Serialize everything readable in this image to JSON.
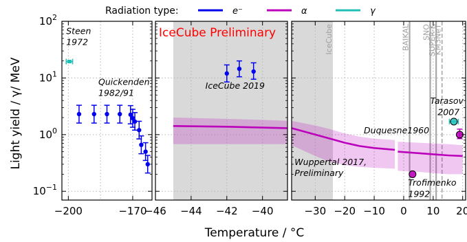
{
  "chart_data": {
    "type": "scatter",
    "ylabel": "Light yield / γ/ MeV",
    "xlabel": "Temperature / °C",
    "yscale": "log",
    "ylim": [
      0.07,
      100
    ],
    "y_ticks": [
      {
        "value": 0.1,
        "base": "10",
        "exp": "−1"
      },
      {
        "value": 1,
        "base": "10",
        "exp": "0"
      },
      {
        "value": 10,
        "base": "10",
        "exp": "1"
      },
      {
        "value": 100,
        "base": "10",
        "exp": "2"
      }
    ],
    "legend": {
      "title": "Radiation type:",
      "placement": "top",
      "entries": [
        {
          "label": "e⁻",
          "color": "#0000ee"
        },
        {
          "label": "α",
          "color": "#bb00bb"
        },
        {
          "label": "γ",
          "color": "#1fbfb8"
        }
      ]
    },
    "watermark": {
      "text": "IceCube Preliminary",
      "color": "#ff0000"
    },
    "panels": [
      {
        "id": "left",
        "xlim": [
          -203,
          -161
        ],
        "x_ticks": [
          {
            "value": -200,
            "label": "−200"
          },
          {
            "value": -170,
            "label": "−170"
          }
        ],
        "grid_x": [
          -200,
          -185,
          -170
        ],
        "annotations": [
          {
            "text": "Steen",
            "x": -201,
            "y": 60
          },
          {
            "text": "1972",
            "x": -201,
            "y": 38
          },
          {
            "text": "Quickenden",
            "x": -186,
            "y": 7.5
          },
          {
            "text": "1982/91",
            "x": -186,
            "y": 4.8
          }
        ],
        "series": [
          {
            "name": "Quickenden 1982/91",
            "radiation": "e⁻",
            "color": "#0000ee",
            "marker": "dot",
            "points": [
              {
                "x": -195,
                "y": 2.3,
                "ylo": 1.6,
                "yhi": 3.3
              },
              {
                "x": -188,
                "y": 2.3,
                "ylo": 1.6,
                "yhi": 3.3
              },
              {
                "x": -182,
                "y": 2.3,
                "ylo": 1.6,
                "yhi": 3.3
              },
              {
                "x": -176,
                "y": 2.3,
                "ylo": 1.6,
                "yhi": 3.3
              },
              {
                "x": -171,
                "y": 2.25,
                "ylo": 1.55,
                "yhi": 3.25
              },
              {
                "x": -170,
                "y": 1.95,
                "ylo": 1.35,
                "yhi": 2.8
              },
              {
                "x": -169,
                "y": 1.7,
                "ylo": 1.2,
                "yhi": 2.45
              },
              {
                "x": -167,
                "y": 1.2,
                "ylo": 0.84,
                "yhi": 1.72
              },
              {
                "x": -166,
                "y": 0.66,
                "ylo": 0.46,
                "yhi": 0.95
              },
              {
                "x": -164,
                "y": 0.5,
                "ylo": 0.35,
                "yhi": 0.72
              },
              {
                "x": -163,
                "y": 0.3,
                "ylo": 0.21,
                "yhi": 0.43
              }
            ]
          },
          {
            "name": "Steen 1972",
            "radiation": "γ",
            "color": "#1fbfb8",
            "marker": "hline",
            "points": [
              {
                "x": -199.5,
                "y": 19.5,
                "xlo": -201,
                "xhi": -198
              }
            ]
          }
        ]
      },
      {
        "id": "middle",
        "xlim": [
          -46,
          -38.6
        ],
        "x_ticks": [
          {
            "value": -46,
            "label": "−46"
          },
          {
            "value": -44,
            "label": "−44"
          },
          {
            "value": -42,
            "label": "−42"
          },
          {
            "value": -40,
            "label": "−40"
          }
        ],
        "grid_x": [
          -46,
          -44,
          -42,
          -40
        ],
        "shaded_x": [
          -45,
          -38.6
        ],
        "annotations": [
          {
            "text": "IceCube 2019",
            "x": -43.2,
            "y": 6.5
          }
        ],
        "series": [
          {
            "name": "IceCube 2019",
            "radiation": "e⁻",
            "color": "#0000ee",
            "marker": "dot",
            "points": [
              {
                "x": -42,
                "y": 12,
                "ylo": 8.5,
                "yhi": 17
              },
              {
                "x": -41.3,
                "y": 14.5,
                "ylo": 10.5,
                "yhi": 20
              },
              {
                "x": -40.5,
                "y": 13,
                "ylo": 9.5,
                "yhi": 18.5
              }
            ]
          },
          {
            "name": "Wuppertal 2017",
            "radiation": "α",
            "color": "#bb00bb",
            "marker": "line",
            "x": [
              -45,
              -42,
              -40,
              -38.6
            ],
            "y": [
              1.42,
              1.38,
              1.33,
              1.3
            ],
            "ylo": [
              0.68,
              0.68,
              0.68,
              0.68
            ],
            "yhi": [
              2.0,
              1.9,
              1.82,
              1.75
            ]
          }
        ]
      },
      {
        "id": "right",
        "xlim": [
          -38,
          21
        ],
        "x_ticks": [
          {
            "value": -30,
            "label": "−30"
          },
          {
            "value": -20,
            "label": "−20"
          },
          {
            "value": -10,
            "label": "−10"
          },
          {
            "value": 0,
            "label": "0"
          },
          {
            "value": 10,
            "label": "10"
          },
          {
            "value": 20,
            "label": "20"
          }
        ],
        "grid_x": [
          -30,
          -20,
          -10,
          0,
          10,
          20
        ],
        "shaded_x": [
          -38,
          -24
        ],
        "annotations": [
          {
            "text": "Wuppertal 2017,",
            "x": -37,
            "y": 0.29
          },
          {
            "text": "Preliminary",
            "x": -37,
            "y": 0.185
          },
          {
            "text": "Duquesne1960",
            "x": -13.5,
            "y": 1.05
          },
          {
            "text": "Tarasov",
            "x": 9,
            "y": 3.5
          },
          {
            "text": "2007",
            "x": 11.5,
            "y": 2.2
          },
          {
            "text": "Trofimenko",
            "x": 1.5,
            "y": 0.125
          },
          {
            "text": "1992",
            "x": 1.5,
            "y": 0.079
          }
        ],
        "experiments": [
          {
            "label": "IceCube",
            "x": -24
          },
          {
            "label": "BAIKAL",
            "x": 2
          },
          {
            "label": "SNO",
            "x": 9
          },
          {
            "label": "SUPER-K",
            "x": 11
          },
          {
            "label": "KM3NeT",
            "x": 13
          }
        ],
        "series": [
          {
            "name": "Wuppertal 2017, Preliminary",
            "radiation": "α",
            "color": "#bb00bb",
            "marker": "line",
            "segments": [
              {
                "x": [
                  -38,
                  -30,
                  -25,
                  -20,
                  -15,
                  -10,
                  -3
                ],
                "y": [
                  1.3,
                  1.0,
                  0.85,
                  0.72,
                  0.63,
                  0.58,
                  0.54
                ],
                "ylo": [
                  0.65,
                  0.42,
                  0.33,
                  0.29,
                  0.27,
                  0.26,
                  0.25
                ],
                "yhi": [
                  1.75,
                  1.45,
                  1.25,
                  1.05,
                  0.92,
                  0.85,
                  0.8
                ]
              },
              {
                "x": [
                  -2,
                  5,
                  10,
                  15,
                  20
                ],
                "y": [
                  0.5,
                  0.47,
                  0.45,
                  0.43,
                  0.42
                ],
                "ylo": [
                  0.23,
                  0.22,
                  0.21,
                  0.2,
                  0.2
                ],
                "yhi": [
                  0.75,
                  0.72,
                  0.7,
                  0.68,
                  0.65
                ]
              }
            ]
          },
          {
            "name": "Duquesne1960",
            "radiation": "α",
            "color": "#bb00bb",
            "marker": "circle",
            "points": [
              {
                "x": 19,
                "y": 1.0,
                "ylo": 0.85,
                "yhi": 1.25
              }
            ]
          },
          {
            "name": "Trofimenko 1992",
            "radiation": "α",
            "color": "#bb00bb",
            "marker": "circle",
            "points": [
              {
                "x": 3,
                "y": 0.2
              }
            ]
          },
          {
            "name": "Tarasov 2007",
            "radiation": "γ",
            "color": "#1fbfb8",
            "marker": "circle",
            "points": [
              {
                "x": 17,
                "y": 1.7,
                "xlo": 15.5,
                "xhi": 18.5
              }
            ]
          }
        ]
      }
    ]
  }
}
